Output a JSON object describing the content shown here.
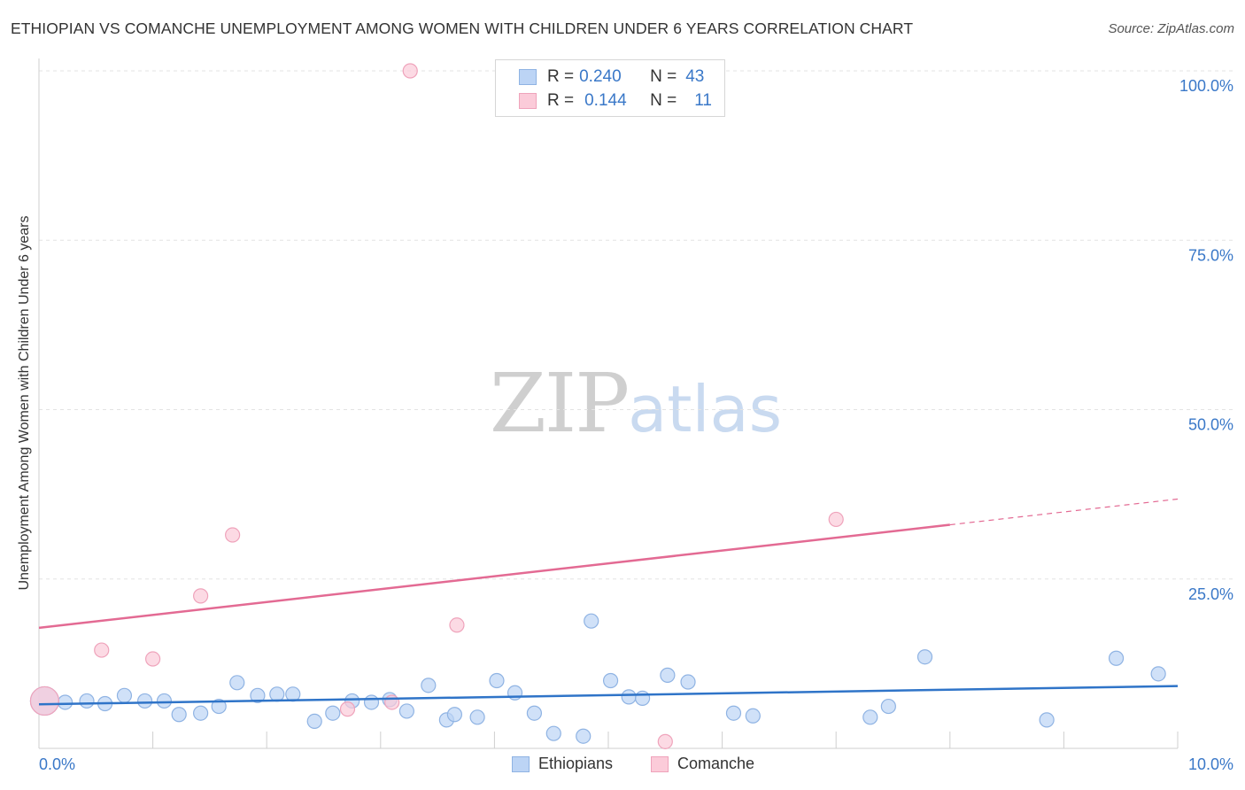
{
  "title": "ETHIOPIAN VS COMANCHE UNEMPLOYMENT AMONG WOMEN WITH CHILDREN UNDER 6 YEARS CORRELATION CHART",
  "source": "Source: ZipAtlas.com",
  "watermark": {
    "zip": "ZIP",
    "atlas": "atlas"
  },
  "legend": {
    "rows": [
      {
        "r_label": "R =",
        "r_value": "0.240",
        "n_label": "N =",
        "n_value": "43"
      },
      {
        "r_label": "R =",
        "r_value": "0.144",
        "n_label": "N =",
        "n_value": "11"
      }
    ]
  },
  "colors": {
    "ethiopians_fill": "#bcd4f5",
    "ethiopians_stroke": "#8fb3e3",
    "ethiopians_line": "#2f74c8",
    "comanche_fill": "#fbcbd9",
    "comanche_stroke": "#efa3bb",
    "comanche_line": "#e36a93",
    "tick_label": "#3a78c8",
    "grid": "#e3e3e3"
  },
  "chart_data": {
    "type": "scatter",
    "title": "ETHIOPIAN VS COMANCHE UNEMPLOYMENT AMONG WOMEN WITH CHILDREN UNDER 6 YEARS CORRELATION CHART",
    "xlabel": "",
    "ylabel": "Unemployment Among Women with Children Under 6 years",
    "xlim": [
      0,
      10
    ],
    "ylim": [
      0,
      100
    ],
    "x_tick_labels": [
      "0.0%",
      "10.0%"
    ],
    "y_tick_labels": [
      "100.0%",
      "75.0%",
      "50.0%",
      "25.0%"
    ],
    "y_ticks": [
      100,
      75,
      50,
      25
    ],
    "grid": true,
    "legend_position": "bottom",
    "series": [
      {
        "name": "Ethiopians",
        "r": 0.24,
        "n": 43,
        "trend": {
          "x0": 0.0,
          "y0": 6.5,
          "x1": 10.0,
          "y1": 9.2,
          "dashed_from": null
        },
        "points": [
          {
            "x": 0.05,
            "y": 7.0,
            "big": true
          },
          {
            "x": 0.23,
            "y": 6.8
          },
          {
            "x": 0.42,
            "y": 7.0
          },
          {
            "x": 0.58,
            "y": 6.6
          },
          {
            "x": 0.75,
            "y": 7.8
          },
          {
            "x": 0.93,
            "y": 7.0
          },
          {
            "x": 1.1,
            "y": 7.0
          },
          {
            "x": 1.23,
            "y": 5.0
          },
          {
            "x": 1.42,
            "y": 5.2
          },
          {
            "x": 1.58,
            "y": 6.2
          },
          {
            "x": 1.74,
            "y": 9.7
          },
          {
            "x": 1.92,
            "y": 7.8
          },
          {
            "x": 2.09,
            "y": 8.0
          },
          {
            "x": 2.23,
            "y": 8.0
          },
          {
            "x": 2.42,
            "y": 4.0
          },
          {
            "x": 2.58,
            "y": 5.2
          },
          {
            "x": 2.75,
            "y": 7.0
          },
          {
            "x": 2.92,
            "y": 6.8
          },
          {
            "x": 3.08,
            "y": 7.2
          },
          {
            "x": 3.23,
            "y": 5.5
          },
          {
            "x": 3.42,
            "y": 9.3
          },
          {
            "x": 3.58,
            "y": 4.2
          },
          {
            "x": 3.65,
            "y": 5.0
          },
          {
            "x": 3.85,
            "y": 4.6
          },
          {
            "x": 4.02,
            "y": 10.0
          },
          {
            "x": 4.18,
            "y": 8.2
          },
          {
            "x": 4.35,
            "y": 5.2
          },
          {
            "x": 4.52,
            "y": 2.2
          },
          {
            "x": 4.78,
            "y": 1.8
          },
          {
            "x": 4.85,
            "y": 18.8
          },
          {
            "x": 5.02,
            "y": 10.0
          },
          {
            "x": 5.18,
            "y": 7.6
          },
          {
            "x": 5.3,
            "y": 7.4
          },
          {
            "x": 5.52,
            "y": 10.8
          },
          {
            "x": 5.7,
            "y": 9.8
          },
          {
            "x": 6.1,
            "y": 5.2
          },
          {
            "x": 6.27,
            "y": 4.8
          },
          {
            "x": 7.3,
            "y": 4.6
          },
          {
            "x": 7.46,
            "y": 6.2
          },
          {
            "x": 7.78,
            "y": 13.5
          },
          {
            "x": 8.85,
            "y": 4.2
          },
          {
            "x": 9.46,
            "y": 13.3
          },
          {
            "x": 9.83,
            "y": 11.0
          }
        ]
      },
      {
        "name": "Comanche",
        "r": 0.144,
        "n": 11,
        "trend": {
          "x0": 0.0,
          "y0": 17.8,
          "x1": 10.0,
          "y1": 36.8,
          "dashed_from": 8.0
        },
        "points": [
          {
            "x": 0.05,
            "y": 7.0,
            "big": true
          },
          {
            "x": 0.55,
            "y": 14.5
          },
          {
            "x": 1.0,
            "y": 13.2
          },
          {
            "x": 1.42,
            "y": 22.5
          },
          {
            "x": 1.7,
            "y": 31.5
          },
          {
            "x": 2.71,
            "y": 5.8
          },
          {
            "x": 3.1,
            "y": 6.8
          },
          {
            "x": 3.26,
            "y": 100.0
          },
          {
            "x": 3.67,
            "y": 18.2
          },
          {
            "x": 5.5,
            "y": 1.0
          },
          {
            "x": 7.0,
            "y": 33.8
          }
        ]
      }
    ]
  },
  "bottom_legend": [
    "Ethiopians",
    "Comanche"
  ]
}
